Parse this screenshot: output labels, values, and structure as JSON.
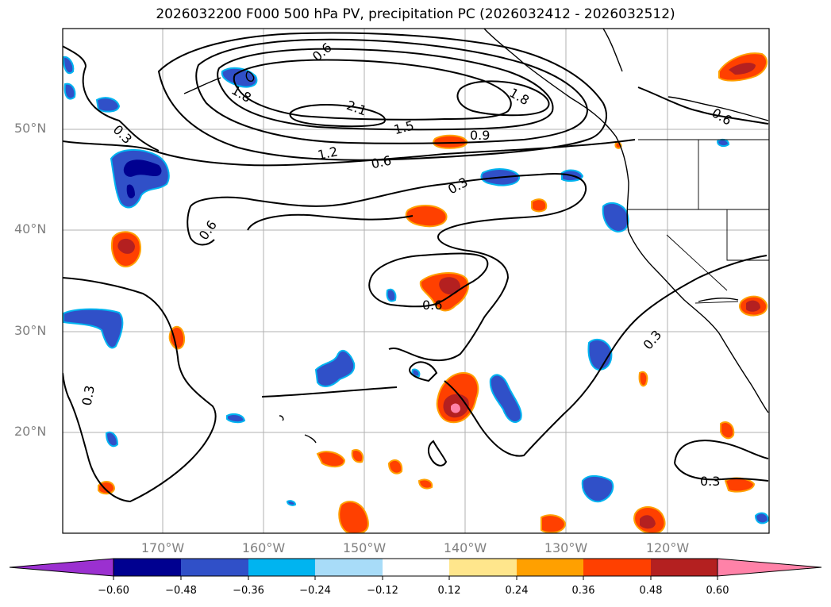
{
  "title": "2026032200 F000 500 hPa PV, precipitation PC (2026032412 - 2026032512)",
  "map": {
    "region": "North Pacific",
    "lon_range": [
      "180°",
      "110°W"
    ],
    "lat_range": [
      "10°N",
      "60°N"
    ],
    "lat_labels": [
      "50°N",
      "40°N",
      "30°N",
      "20°N"
    ],
    "lon_labels": [
      "170°W",
      "160°W",
      "150°W",
      "140°W",
      "130°W",
      "120°W"
    ],
    "grid": true,
    "grid_color": "#b0b0b0",
    "coastline_color": "#000000"
  },
  "contours": {
    "field": "500 hPa PV",
    "labels": [
      "0.3",
      "0.6",
      "0.9",
      "1.2",
      "1.5",
      "1.8",
      "2.1",
      "1.8",
      "0.6",
      "0.3",
      "0.6",
      "0.3",
      "0.3",
      "0.6",
      "0.3",
      "0.6"
    ]
  },
  "colorbar": {
    "colors": [
      "#9b30d0",
      "#000090",
      "#3050c8",
      "#00b4f0",
      "#a8dcf8",
      "#ffffff",
      "#ffe68c",
      "#ffa000",
      "#ff4000",
      "#b42020",
      "#ff82a8"
    ],
    "tick_labels": [
      "−0.60",
      "−0.48",
      "−0.36",
      "−0.24",
      "−0.12",
      "0.12",
      "0.24",
      "0.36",
      "0.48",
      "0.60"
    ]
  }
}
